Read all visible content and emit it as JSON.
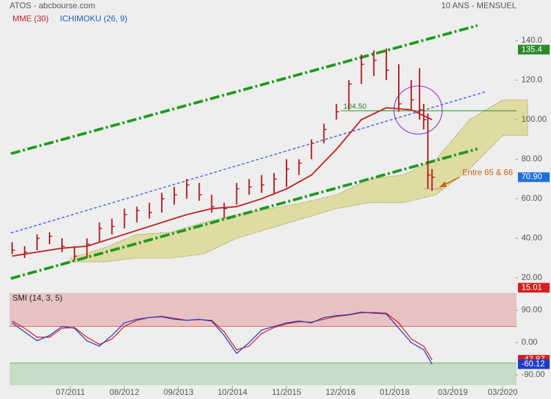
{
  "chart_data": [
    {
      "type": "ohlc",
      "title": "ATOS - abcbourse.com",
      "subtitle": "10 ANS - MENSUEL",
      "xlim": [
        -8.6,
        113
      ],
      "ylim": [
        14.4,
        160.5
      ],
      "xticks": [
        {
          "value": 6,
          "label": "07/2011"
        },
        {
          "value": 19,
          "label": "08/2012"
        },
        {
          "value": 32,
          "label": "09/2013"
        },
        {
          "value": 45,
          "label": "10/2014"
        },
        {
          "value": 58,
          "label": "11/2015"
        },
        {
          "value": 71,
          "label": "12/2016"
        },
        {
          "value": 84,
          "label": "01/2018"
        },
        {
          "value": 98,
          "label": "03/2019"
        },
        {
          "value": 110,
          "label": "03/2020"
        }
      ],
      "yticks": [
        {
          "value": 140,
          "label": "140.0"
        },
        {
          "value": 120,
          "label": "120.0"
        },
        {
          "value": 100,
          "label": "100.00"
        },
        {
          "value": 80,
          "label": "80.00"
        },
        {
          "value": 60,
          "label": "60.00"
        },
        {
          "value": 40,
          "label": "40.00"
        },
        {
          "value": 20,
          "label": "20.00"
        }
      ],
      "bars": {
        "color": "#b01e1e",
        "x": [
          -8,
          -5,
          -2,
          1,
          4,
          7,
          10,
          13,
          16,
          19,
          22,
          25,
          28,
          31,
          34,
          37,
          40,
          43,
          46,
          49,
          52,
          55,
          58,
          61,
          64,
          67,
          70,
          73,
          76,
          79,
          82,
          85,
          88,
          90,
          91,
          92,
          93
        ],
        "high": [
          38,
          36,
          42,
          43,
          40,
          36,
          40,
          48,
          50,
          55,
          56,
          58,
          63,
          66,
          70,
          68,
          62,
          58,
          68,
          70,
          72,
          73,
          80,
          80,
          90,
          98,
          108,
          120,
          133,
          135,
          136,
          128,
          120,
          126,
          108,
          103,
          75
        ],
        "low": [
          32,
          30,
          34,
          37,
          33,
          29,
          30,
          38,
          42,
          45,
          48,
          50,
          53,
          57,
          60,
          59,
          53,
          50,
          57,
          62,
          63,
          62,
          66,
          72,
          80,
          88,
          100,
          105,
          118,
          122,
          120,
          104,
          105,
          100,
          95,
          65,
          64
        ],
        "close": [
          34,
          33,
          40,
          41,
          36,
          31,
          37,
          45,
          46,
          52,
          54,
          53,
          60,
          62,
          67,
          62,
          56,
          55,
          65,
          66,
          67,
          70,
          75,
          78,
          88,
          95,
          104,
          118,
          128,
          130,
          125,
          108,
          110,
          105,
          100,
          72,
          70.9
        ]
      },
      "series": [
        {
          "name": "MME (30)",
          "color": "#c0282a",
          "x": [
            -8,
            -2,
            4,
            10,
            16,
            22,
            28,
            34,
            40,
            46,
            52,
            58,
            64,
            70,
            76,
            82,
            88,
            93
          ],
          "values": [
            31,
            33,
            35,
            36,
            40,
            44,
            48,
            52,
            55,
            56,
            60,
            65,
            72,
            85,
            100,
            106,
            105,
            100
          ]
        }
      ],
      "cloud": {
        "name": "ICHIMOKU (26, 9)",
        "color": "#1a5fc8",
        "fill": "#d8d48a",
        "x": [
          6,
          14,
          22,
          30,
          38,
          46,
          54,
          62,
          70,
          78,
          86,
          94,
          102,
          110,
          116
        ],
        "upper": [
          30,
          35,
          42,
          43,
          48,
          52,
          55,
          58,
          62,
          70,
          72,
          80,
          100,
          110,
          110
        ],
        "lower": [
          28,
          28,
          30,
          30,
          32,
          40,
          45,
          50,
          55,
          58,
          58,
          62,
          75,
          92,
          92
        ]
      },
      "trendlines": [
        {
          "color": "#1e9a1e",
          "style": "dashdot",
          "x": [
            -8.3,
            103.9
          ],
          "values": [
            82.8,
            147.6
          ]
        },
        {
          "color": "#1e9a1e",
          "style": "dashdot",
          "x": [
            -8.3,
            103.9
          ],
          "values": [
            19.7,
            85.2
          ]
        },
        {
          "color": "#4a5ef0",
          "style": "dash",
          "x": [
            -8.3,
            106
          ],
          "values": [
            42.7,
            114.2
          ]
        }
      ],
      "level": {
        "value": 104.5,
        "label": "104.50",
        "x": 71,
        "color": "#1e8a1e"
      },
      "markers": {
        "values": [
          135.4,
          70.9,
          15.01
        ],
        "value_labels": [
          "135.4",
          "70.90",
          "15.01"
        ],
        "colors": [
          "#2a8a2a",
          "#1e6fd9",
          "#d42020"
        ]
      },
      "annotation": {
        "text": "Entre 65 & 66",
        "x": 93,
        "value": 65,
        "color": "#c86414"
      }
    },
    {
      "type": "line",
      "title": "SMI (14, 3, 5)",
      "ylim": [
        -118.8,
        138
      ],
      "yticks": [
        {
          "value": 90,
          "label": "90.00"
        },
        {
          "value": 0,
          "label": "0.00"
        },
        {
          "value": -90,
          "label": "-90.00"
        }
      ],
      "zones": [
        {
          "from": 45,
          "to": 138,
          "color": "#e8c2c2",
          "line": "#d84040"
        },
        {
          "from": -118.8,
          "to": -57,
          "color": "#c6dcc6",
          "line": "#3a9a3a"
        }
      ],
      "x": [
        -8,
        -5,
        -2,
        1,
        4,
        7,
        10,
        13,
        16,
        19,
        22,
        25,
        28,
        31,
        34,
        37,
        40,
        43,
        46,
        49,
        52,
        55,
        58,
        61,
        64,
        67,
        70,
        73,
        76,
        79,
        82,
        85,
        88,
        91,
        93
      ],
      "series": [
        {
          "color": "#e02020",
          "values": [
            60,
            40,
            15,
            15,
            40,
            42,
            15,
            -5,
            10,
            45,
            62,
            70,
            73,
            68,
            62,
            64,
            62,
            30,
            -20,
            -10,
            25,
            42,
            52,
            58,
            57,
            65,
            73,
            77,
            83,
            84,
            82,
            55,
            10,
            -10,
            -47.87
          ]
        },
        {
          "color": "#1e3cc8",
          "values": [
            55,
            30,
            5,
            20,
            45,
            40,
            5,
            -10,
            20,
            55,
            65,
            70,
            72,
            65,
            62,
            65,
            60,
            20,
            -30,
            0,
            35,
            45,
            55,
            60,
            55,
            70,
            75,
            78,
            85,
            82,
            80,
            40,
            0,
            -20,
            -60.12
          ]
        }
      ],
      "markers": {
        "values": [
          -47.87,
          -60.12
        ],
        "colors": [
          "#d42020",
          "#1e3cc8"
        ]
      }
    }
  ]
}
